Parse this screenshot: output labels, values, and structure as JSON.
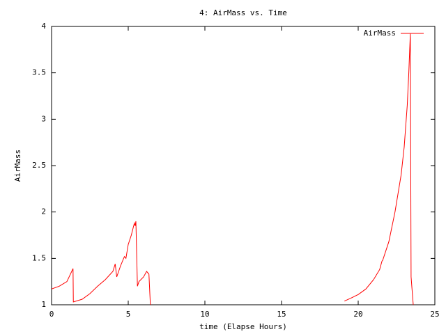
{
  "chart_data": {
    "type": "line",
    "title": "4: AirMass vs. Time",
    "x_label": "time (Elapse Hours)",
    "y_label": "AirMass",
    "x": [
      0,
      0.5,
      1,
      1.4,
      1.42,
      2,
      2.5,
      3,
      3.5,
      4,
      4.15,
      4.25,
      4.5,
      4.75,
      4.85,
      5,
      5.2,
      5.4,
      5.45,
      5.5,
      5.6,
      5.7,
      6,
      6.2,
      6.35,
      6.45,
      12,
      19.1,
      19.5,
      20,
      20.5,
      21,
      21.4,
      21.55,
      21.6,
      22,
      22.4,
      22.8,
      23,
      23.2,
      23.3,
      23.4,
      23.45,
      23.6
    ],
    "series": [
      {
        "name": "AirMass",
        "color": "#ff0000",
        "values": [
          1.17,
          1.2,
          1.25,
          1.39,
          1.03,
          1.06,
          1.12,
          1.2,
          1.27,
          1.36,
          1.44,
          1.3,
          1.42,
          1.52,
          1.5,
          1.65,
          1.75,
          1.88,
          1.85,
          1.9,
          1.2,
          1.25,
          1.3,
          1.36,
          1.33,
          0.98,
          null,
          1.04,
          1.07,
          1.11,
          1.17,
          1.27,
          1.38,
          1.47,
          1.48,
          1.68,
          2.0,
          2.4,
          2.7,
          3.15,
          3.5,
          3.92,
          1.3,
          0.98
        ]
      }
    ],
    "xlim": [
      0,
      25
    ],
    "xticks": [
      0,
      5,
      10,
      15,
      20,
      25
    ],
    "ylim": [
      1,
      4
    ],
    "yticks": [
      1,
      1.5,
      2,
      2.5,
      3,
      3.5,
      4
    ],
    "legend": "top-right"
  }
}
